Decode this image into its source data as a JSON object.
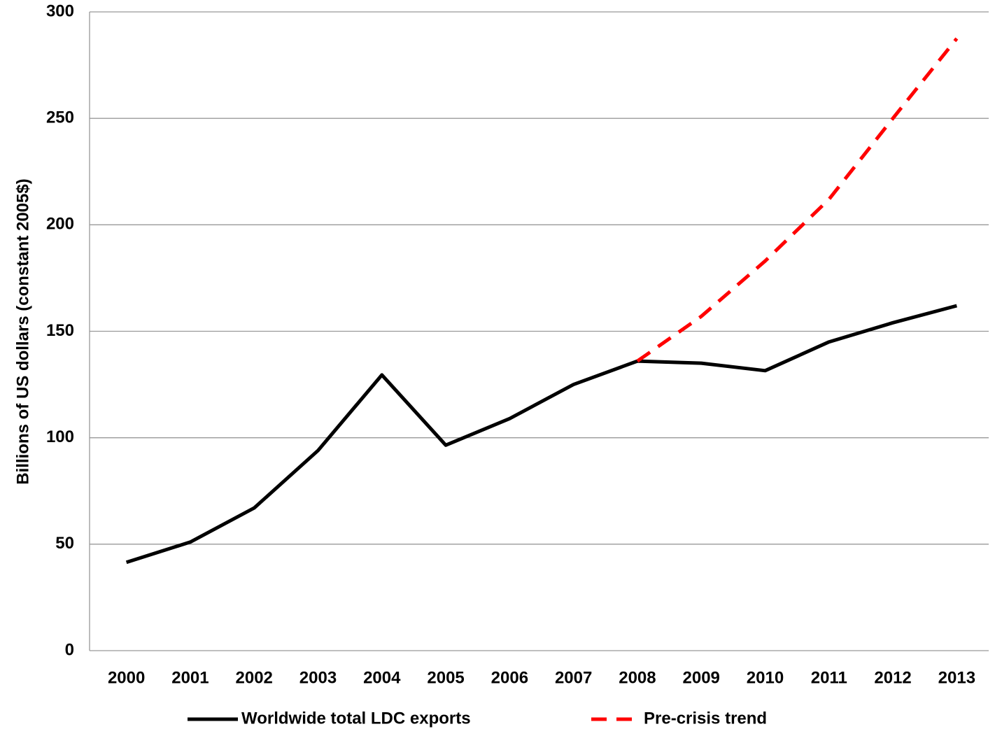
{
  "chart_data": {
    "type": "line",
    "y_label": "Billions of US dollars (constant 2005$)",
    "categories": [
      "2000",
      "2001",
      "2002",
      "2003",
      "2004",
      "2005",
      "2006",
      "2007",
      "2008",
      "2009",
      "2010",
      "2011",
      "2012",
      "2013"
    ],
    "series": [
      {
        "name": "Worldwide total LDC exports",
        "color": "#000000",
        "dash": false,
        "values": [
          41.5,
          51,
          67,
          94,
          129.5,
          96.5,
          109,
          125,
          136,
          135,
          131.5,
          145,
          154,
          162
        ]
      },
      {
        "name": "Pre-crisis trend",
        "color": "#ff0000",
        "dash": true,
        "values": [
          null,
          null,
          null,
          null,
          null,
          null,
          null,
          null,
          136,
          157,
          183,
          212,
          250,
          287.5
        ]
      }
    ],
    "ylim": [
      0,
      300
    ],
    "yticks": [
      0,
      50,
      100,
      150,
      200,
      250,
      300
    ],
    "grid": true,
    "legend": "bottom"
  }
}
